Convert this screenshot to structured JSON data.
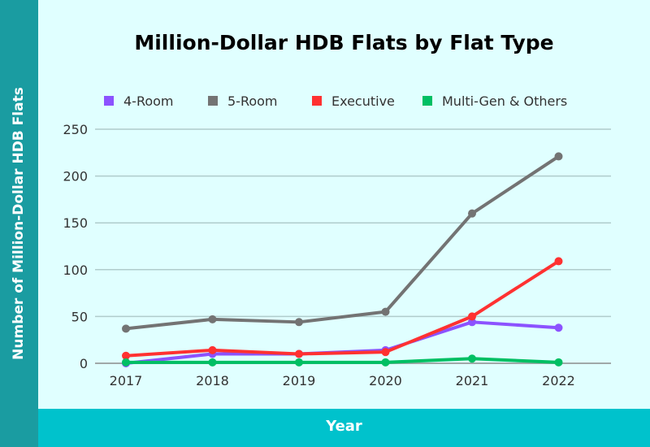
{
  "chart_data": {
    "type": "line",
    "title": "Million-Dollar HDB Flats by Flat Type",
    "xlabel": "Year",
    "ylabel": "Number of Million-Dollar HDB Flats",
    "x": [
      "2017",
      "2018",
      "2019",
      "2020",
      "2021",
      "2022"
    ],
    "ylim": [
      0,
      250
    ],
    "yticks": [
      "0",
      "50",
      "100",
      "150",
      "200",
      "250"
    ],
    "grid": true,
    "legend": "top",
    "series": [
      {
        "name": "4-Room",
        "color": "#8c52ff",
        "values": [
          0,
          10,
          10,
          14,
          44,
          38
        ]
      },
      {
        "name": "5-Room",
        "color": "#737373",
        "values": [
          37,
          47,
          44,
          55,
          160,
          221
        ]
      },
      {
        "name": "Executive",
        "color": "#ff3131",
        "values": [
          8,
          14,
          10,
          12,
          50,
          109
        ]
      },
      {
        "name": "Multi-Gen & Others",
        "color": "#00bf63",
        "values": [
          1,
          1,
          1,
          1,
          5,
          1
        ]
      }
    ]
  }
}
